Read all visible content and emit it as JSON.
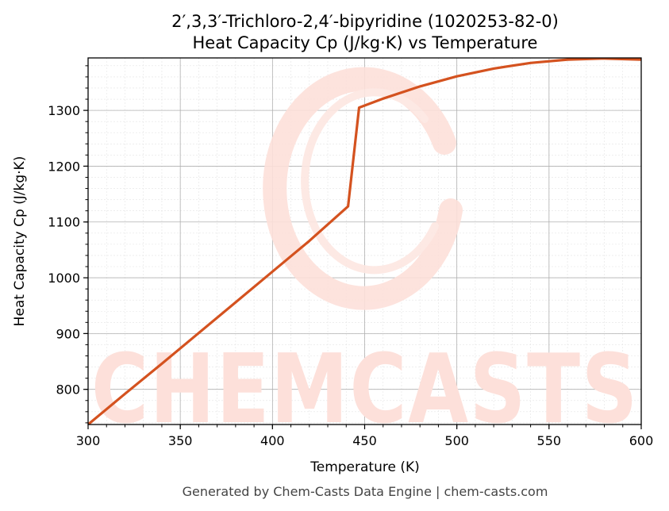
{
  "chart_data": {
    "type": "line",
    "title": "2′,3,3′-Trichloro-2,4′-bipyridine (1020253-82-0)",
    "subtitle": "Heat Capacity Cp (J/kg·K) vs Temperature",
    "xlabel": "Temperature (K)",
    "ylabel": "Heat Capacity Cp (J/kg·K)",
    "xlim": [
      300,
      600
    ],
    "ylim": [
      737,
      1394
    ],
    "xticks": [
      300,
      350,
      400,
      450,
      500,
      550,
      600
    ],
    "yticks": [
      800,
      900,
      1000,
      1100,
      1200,
      1300
    ],
    "grid": true,
    "series": [
      {
        "color": "#d4521f",
        "x": [
          300,
          320,
          340,
          360,
          380,
          400,
          420,
          441,
          447,
          460,
          480,
          500,
          520,
          540,
          560,
          580,
          600
        ],
        "values": [
          737,
          792,
          846,
          901,
          956,
          1011,
          1066,
          1128,
          1305,
          1321,
          1343,
          1361,
          1375,
          1385,
          1391,
          1393,
          1391
        ]
      }
    ]
  },
  "watermark": {
    "text": "CHEMCASTS",
    "color": "#fde0da"
  },
  "footer": "Generated by Chem-Casts Data Engine | chem-casts.com"
}
